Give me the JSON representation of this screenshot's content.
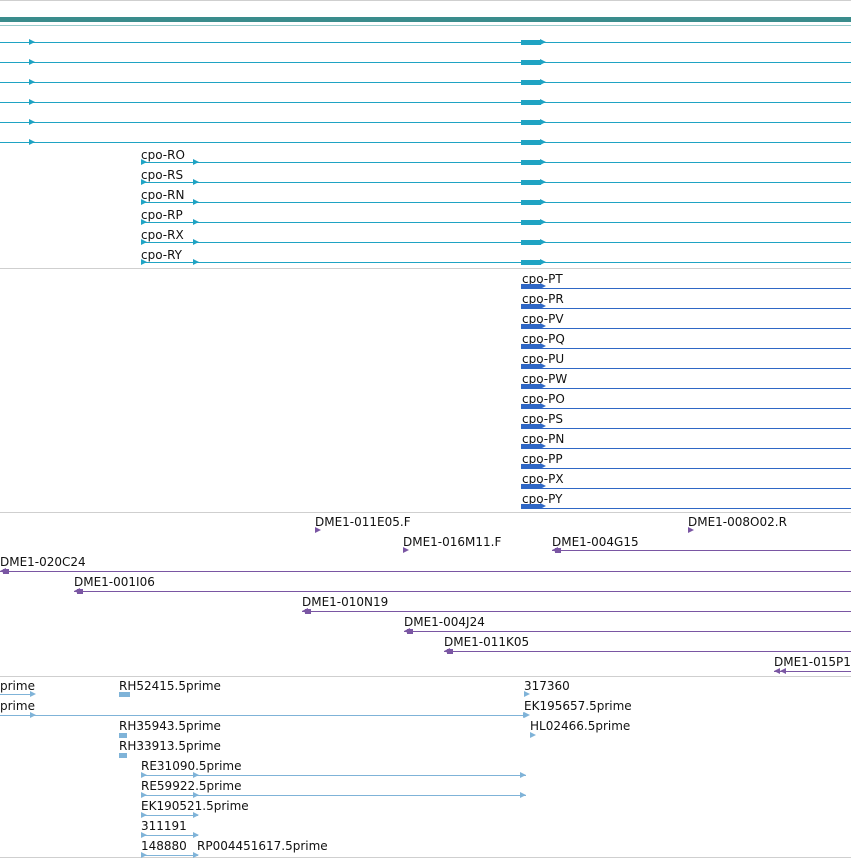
{
  "colors": {
    "reference": "#3a8c8c",
    "transcripts": "#1fa3c3",
    "proteins": "#2f67c5",
    "insertions": "#7a56a3",
    "ests": "#7fb3d8",
    "divider": "#cfcfcf"
  },
  "transcript_labels": [
    "cpo-RO",
    "cpo-RS",
    "cpo-RN",
    "cpo-RP",
    "cpo-RX",
    "cpo-RY"
  ],
  "protein_labels": [
    "cpo-PT",
    "cpo-PR",
    "cpo-PV",
    "cpo-PQ",
    "cpo-PU",
    "cpo-PW",
    "cpo-PO",
    "cpo-PS",
    "cpo-PN",
    "cpo-PP",
    "cpo-PX",
    "cpo-PY"
  ],
  "insertion_labels": [
    "DME1-011E05.F",
    "DME1-008O02.R",
    "DME1-016M11.F",
    "DME1-004G15",
    "DME1-020C24",
    "DME1-001I06",
    "DME1-010N19",
    "DME1-004J24",
    "DME1-011K05",
    "DME1-015P1"
  ],
  "est_labels": [
    "prime",
    "prime",
    "RH52415.5prime",
    "317360",
    "EK195657.5prime",
    "HL02466.5prime",
    "RH35943.5prime",
    "RH33913.5prime",
    "RE31090.5prime",
    "RE59922.5prime",
    "EK190521.5prime",
    "311191",
    "148880",
    "RP004451617.5prime"
  ]
}
